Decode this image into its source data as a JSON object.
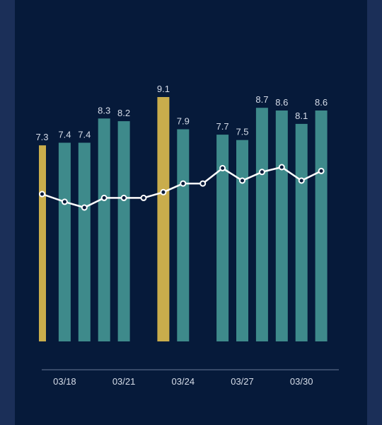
{
  "colors": {
    "background": "#061a3a",
    "side": "#1b2f58",
    "bar": "#3e8a8b",
    "highlight": "#c9ad4c",
    "line": "#ffffff",
    "axis": "#6b7a95",
    "text": "#d6dde9"
  },
  "chart_data": {
    "type": "bar",
    "title": "",
    "xlabel": "",
    "ylabel": "",
    "ylim": [
      0,
      9.6
    ],
    "x": [
      "03/17",
      "03/18",
      "03/19",
      "03/20",
      "03/21",
      "03/22",
      "03/23",
      "03/24",
      "03/25",
      "03/26",
      "03/27",
      "03/28",
      "03/29",
      "03/30",
      "03/31"
    ],
    "x_tick_labels": [
      "03/18",
      "03/21",
      "03/24",
      "03/27",
      "03/30"
    ],
    "bars": [
      {
        "x": "03/17",
        "value": 7.3,
        "label": "7.3",
        "highlight": true
      },
      {
        "x": "03/18",
        "value": 7.4,
        "label": "7.4",
        "highlight": false
      },
      {
        "x": "03/19",
        "value": 7.4,
        "label": "7.4",
        "highlight": false
      },
      {
        "x": "03/20",
        "value": 8.3,
        "label": "8.3",
        "highlight": false
      },
      {
        "x": "03/21",
        "value": 8.2,
        "label": "8.2",
        "highlight": false
      },
      {
        "x": "03/22",
        "value": null,
        "label": "",
        "highlight": false
      },
      {
        "x": "03/23",
        "value": 9.1,
        "label": "9.1",
        "highlight": true
      },
      {
        "x": "03/24",
        "value": 7.9,
        "label": "7.9",
        "highlight": false
      },
      {
        "x": "03/25",
        "value": null,
        "label": "",
        "highlight": false
      },
      {
        "x": "03/26",
        "value": 7.7,
        "label": "7.7",
        "highlight": false
      },
      {
        "x": "03/27",
        "value": 7.5,
        "label": "7.5",
        "highlight": false
      },
      {
        "x": "03/28",
        "value": 8.7,
        "label": "8.7",
        "highlight": false
      },
      {
        "x": "03/29",
        "value": 8.6,
        "label": "8.6",
        "highlight": false
      },
      {
        "x": "03/30",
        "value": 8.1,
        "label": "8.1",
        "highlight": false
      },
      {
        "x": "03/31",
        "value": 8.6,
        "label": "8.6",
        "highlight": false
      }
    ],
    "line_series": {
      "name": "",
      "values": [
        7.85,
        7.77,
        7.71,
        7.81,
        7.81,
        7.81,
        7.87,
        7.96,
        7.96,
        8.12,
        7.99,
        8.08,
        8.13,
        7.99,
        8.09
      ]
    },
    "grid": false,
    "legend": "none"
  }
}
